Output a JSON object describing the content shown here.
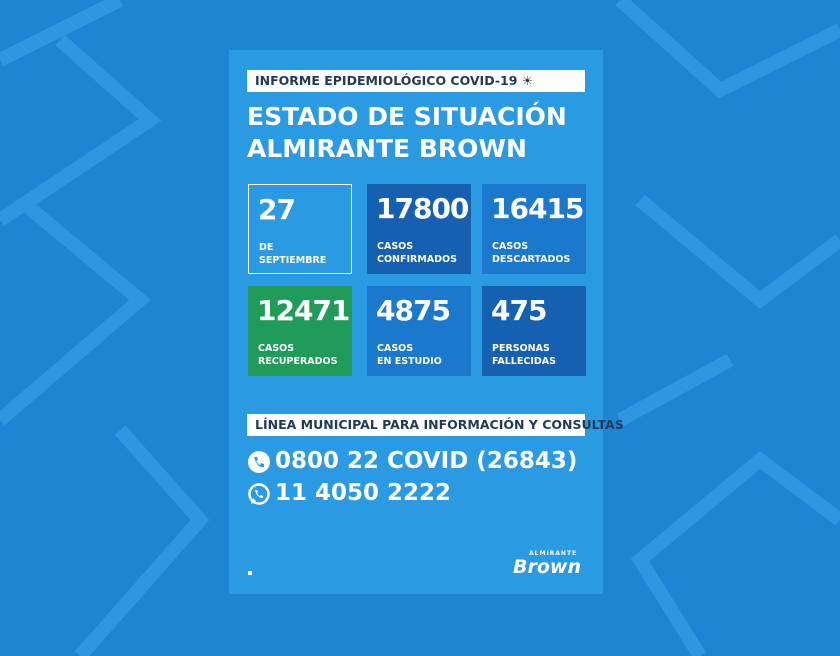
{
  "header": {
    "tag": "INFORME EPIDEMIOLÓGICO COVID-19",
    "title_lines": [
      "ESTADO DE SITUACIÓN",
      "ALMIRANTE BROWN"
    ]
  },
  "cards": [
    {
      "value": 27,
      "label_lines": [
        "DE",
        "SEPTIEMBRE"
      ]
    },
    {
      "value": 17800,
      "label_lines": [
        "CASOS",
        "CONFIRMADOS"
      ]
    },
    {
      "value": 16415,
      "label_lines": [
        "CASOS",
        "DESCARTADOS"
      ]
    },
    {
      "value": 12471,
      "label_lines": [
        "CASOS",
        "RECUPERADOS"
      ]
    },
    {
      "value": 4875,
      "label_lines": [
        "CASOS",
        "EN ESTUDIO"
      ]
    },
    {
      "value": 475,
      "label_lines": [
        "PERSONAS",
        "FALLECIDAS"
      ]
    }
  ],
  "contact": {
    "heading": "LÍNEA MUNICIPAL PARA INFORMACIÓN Y CONSULTAS",
    "phone": "0800 22 COVID (26843)",
    "whatsapp": "11 4050 2222"
  },
  "logo": {
    "small": "ALMIRANTE",
    "big": "Brown"
  }
}
